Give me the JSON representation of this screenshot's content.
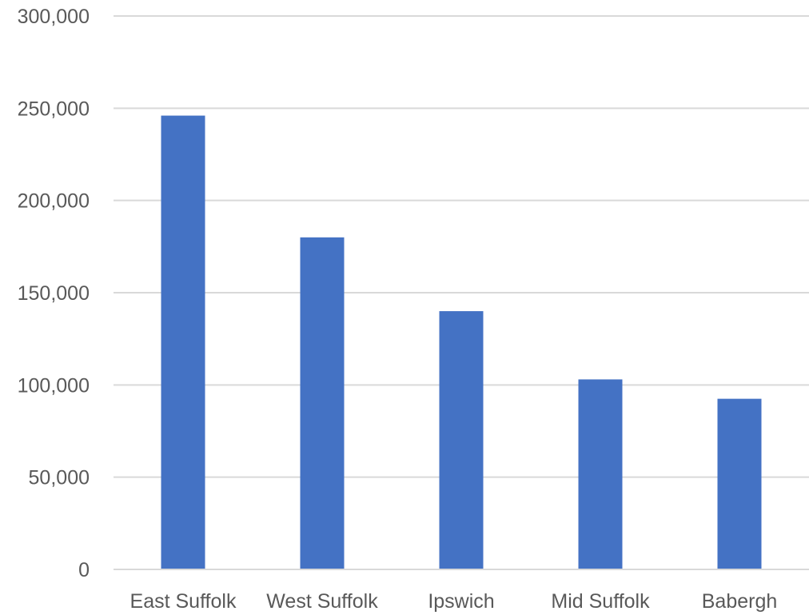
{
  "chart_data": {
    "type": "bar",
    "title": "",
    "xlabel": "",
    "ylabel": "",
    "categories": [
      "East Suffolk",
      "West Suffolk",
      "Ipswich",
      "Mid Suffolk",
      "Babergh"
    ],
    "values": [
      246000,
      180000,
      140000,
      103000,
      92500
    ],
    "ylim": [
      0,
      300000
    ],
    "y_ticks": [
      0,
      50000,
      100000,
      150000,
      200000,
      250000,
      300000
    ],
    "y_tick_labels": [
      "0",
      "50,000",
      "100,000",
      "150,000",
      "200,000",
      "250,000",
      "300,000"
    ],
    "grid": true,
    "legend": "none",
    "bar_color": "#4472c4"
  }
}
